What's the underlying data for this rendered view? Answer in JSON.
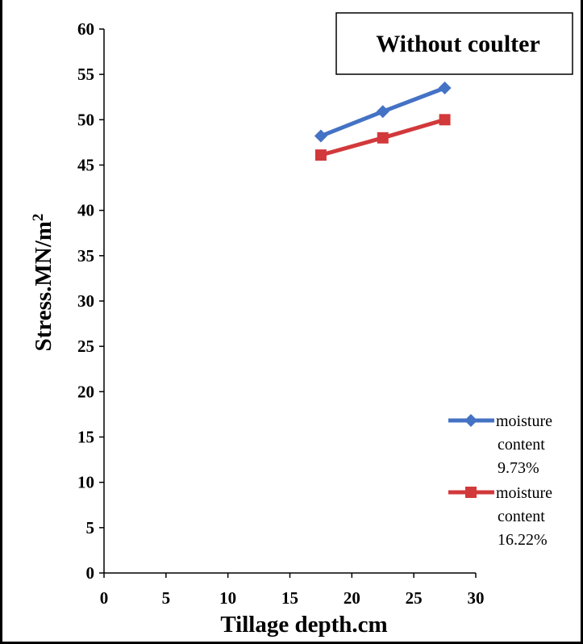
{
  "chart_data": {
    "type": "line",
    "title": "Without coulter",
    "xlabel": "Tillage depth.cm",
    "ylabel_base": "Stress.MN/m",
    "ylabel_sup": "2",
    "xlim": [
      0,
      30
    ],
    "ylim": [
      0,
      60
    ],
    "xticks": [
      "0",
      "5",
      "10",
      "15",
      "20",
      "25",
      "30"
    ],
    "yticks": [
      "0",
      "5",
      "10",
      "15",
      "20",
      "25",
      "30",
      "35",
      "40",
      "45",
      "50",
      "55",
      "60"
    ],
    "x": [
      17.5,
      22.5,
      27.5
    ],
    "grid": false,
    "legend_position": "right",
    "series": [
      {
        "name": "moisture content 9.73%",
        "name_lines": [
          "moisture",
          "content",
          "9.73%"
        ],
        "marker": "diamond",
        "color": "#4472C4",
        "values": [
          48.2,
          50.9,
          53.5
        ]
      },
      {
        "name": "moisture content 16.22%",
        "name_lines": [
          "moisture",
          "content",
          "16.22%"
        ],
        "marker": "square",
        "color": "#D2393B",
        "values": [
          46.1,
          48.0,
          50.0
        ]
      }
    ]
  }
}
